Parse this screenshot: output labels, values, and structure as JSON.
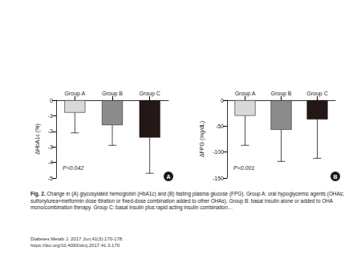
{
  "chart_data": [
    {
      "type": "bar",
      "panel": "A",
      "annotation": "P=0.042",
      "y_label": "ΔHbA1c (%)",
      "categories": [
        "Group A",
        "Group B",
        "Group C"
      ],
      "values": [
        -0.8,
        -1.6,
        -2.4
      ],
      "errors": [
        1.3,
        1.3,
        2.3
      ],
      "colors": [
        "#d9d9d9",
        "#8c8c8c",
        "#231815"
      ],
      "ylim": [
        -5,
        0
      ],
      "yticks": [
        -5,
        -4,
        -3,
        -2,
        -1,
        0
      ],
      "grid": false
    },
    {
      "type": "bar",
      "panel": "B",
      "annotation": "P<0.001",
      "y_label": "ΔFPG (mg/dL)",
      "categories": [
        "Group A",
        "Group B",
        "Group C"
      ],
      "values": [
        -30,
        -57,
        -37
      ],
      "errors": [
        57,
        61,
        75
      ],
      "colors": [
        "#d9d9d9",
        "#8c8c8c",
        "#231815"
      ],
      "ylim": [
        -150,
        0
      ],
      "yticks": [
        -150,
        -100,
        -50,
        0
      ],
      "grid": false
    }
  ],
  "caption": {
    "label": "Fig. 2.",
    "text": "Change in (A) glycosylated hemoglobin (HbA1c) and (B) fasting plasma glucose (FPG). Group A: oral hypoglycemic agents (OHAs; sulfonylurea+metformin dose titration or fixed-dose combination added to other OHAs). Group B: basal insulin alone or added to OHA mono/combination therapy. Group C: basal insulin plus rapid acting insulin combination…"
  },
  "source": {
    "journal": "Diabetes Metab J. 2017 Jun;41(3):170-178.",
    "doi": "https://doi.org/10.4093/dmj.2017.41.3.170"
  }
}
